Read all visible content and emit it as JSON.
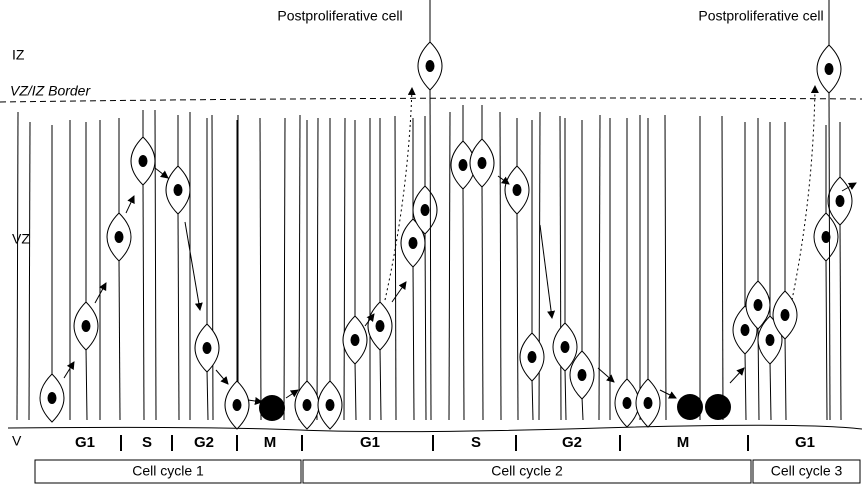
{
  "zones": {
    "iz": "IZ",
    "border": "VZ/IZ Border",
    "vz": "VZ",
    "v": "V"
  },
  "annotations": [
    "Postproliferative cell",
    "Postproliferative cell"
  ],
  "phases": [
    "G1",
    "S",
    "G2",
    "M",
    "G1",
    "S",
    "G2",
    "M",
    "G1"
  ],
  "cycles": [
    "Cell cycle 1",
    "Cell cycle 2",
    "Cell cycle 3"
  ]
}
